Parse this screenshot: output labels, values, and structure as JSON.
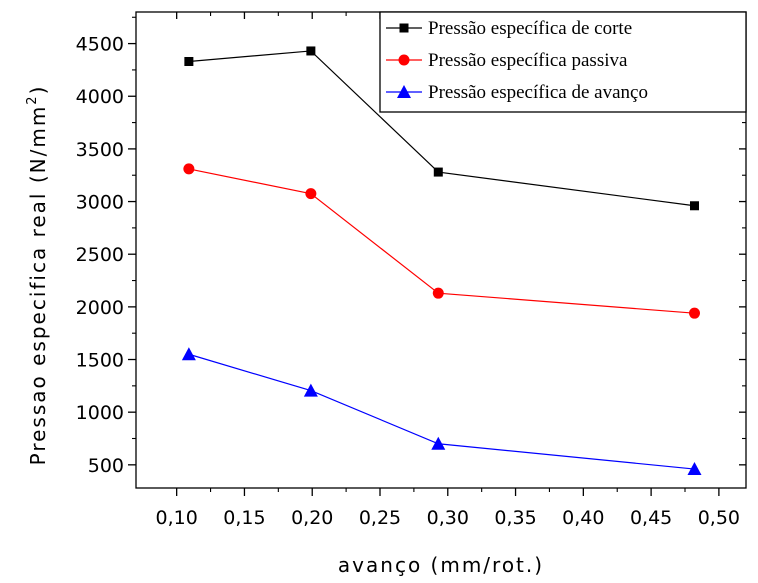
{
  "chart_data": {
    "type": "line",
    "xlabel": "avanço (mm/rot.)",
    "ylabel": "Pressao especifica real (N/mm",
    "ylabel_superscript": "2",
    "ylabel_close": ")",
    "x": [
      0.109,
      0.199,
      0.293,
      0.482
    ],
    "xlim": [
      0.07,
      0.52
    ],
    "ylim": [
      280,
      4800
    ],
    "x_ticks": [
      0.1,
      0.15,
      0.2,
      0.25,
      0.3,
      0.35,
      0.4,
      0.45,
      0.5
    ],
    "x_tick_labels": [
      "0,10",
      "0,15",
      "0,20",
      "0,25",
      "0,30",
      "0,35",
      "0,40",
      "0,45",
      "0,50"
    ],
    "y_ticks": [
      500,
      1000,
      1500,
      2000,
      2500,
      3000,
      3500,
      4000,
      4500
    ],
    "y_tick_labels": [
      "500",
      "1000",
      "1500",
      "2000",
      "2500",
      "3000",
      "3500",
      "4000",
      "4500"
    ],
    "grid": false,
    "legend_position": "top-right",
    "series": [
      {
        "name": "Pressão específica de corte",
        "values": [
          4330,
          4430,
          3280,
          2960
        ],
        "color": "#000000",
        "marker": "square"
      },
      {
        "name": "Pressão específica passiva",
        "values": [
          3310,
          3075,
          2130,
          1940
        ],
        "color": "#ff0000",
        "marker": "circle"
      },
      {
        "name": "Pressão específica de avanço",
        "values": [
          1550,
          1205,
          700,
          460
        ],
        "color": "#0000ff",
        "marker": "triangle"
      }
    ]
  }
}
